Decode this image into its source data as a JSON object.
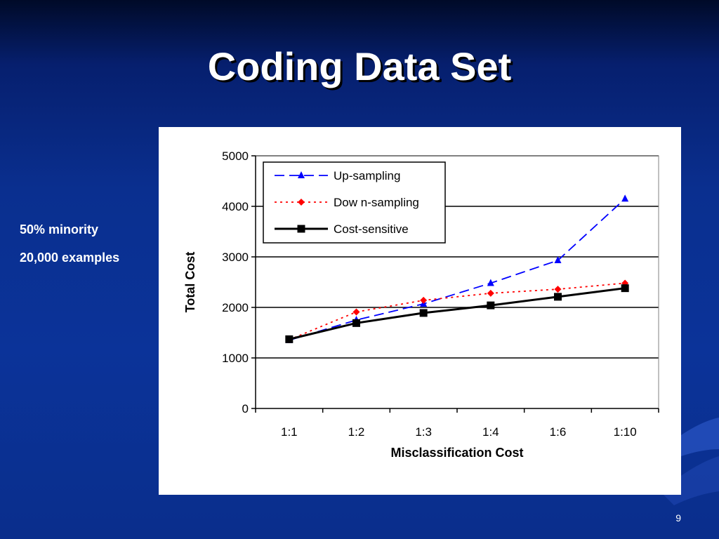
{
  "slide": {
    "title": "Coding Data Set",
    "notes": [
      "50% minority",
      "20,000 examples"
    ],
    "page_number": "9"
  },
  "colors": {
    "background": "#0a2f8f",
    "up_sampling": "#0000ff",
    "down_sampling": "#ff0000",
    "cost_sensitive": "#000000"
  },
  "chart_data": {
    "type": "line",
    "title": "",
    "xlabel": "Misclassification Cost",
    "ylabel": "Total Cost",
    "categories": [
      "1:1",
      "1:2",
      "1:3",
      "1:4",
      "1:6",
      "1:10"
    ],
    "ylim": [
      0,
      5000
    ],
    "yticks": [
      0,
      1000,
      2000,
      3000,
      4000,
      5000
    ],
    "grid": "horizontal",
    "legend_position": "top-left",
    "series": [
      {
        "name": "Up-sampling",
        "values": [
          1350,
          1750,
          2070,
          2480,
          2930,
          4150
        ],
        "color": "#0000ff",
        "line_style": "dashed",
        "marker": "triangle"
      },
      {
        "name": "Dow n-sampling",
        "values": [
          1360,
          1910,
          2140,
          2280,
          2360,
          2480
        ],
        "color": "#ff0000",
        "line_style": "dotted",
        "marker": "diamond"
      },
      {
        "name": "Cost-sensitive",
        "values": [
          1370,
          1690,
          1890,
          2040,
          2210,
          2380
        ],
        "color": "#000000",
        "line_style": "solid",
        "marker": "square"
      }
    ]
  }
}
